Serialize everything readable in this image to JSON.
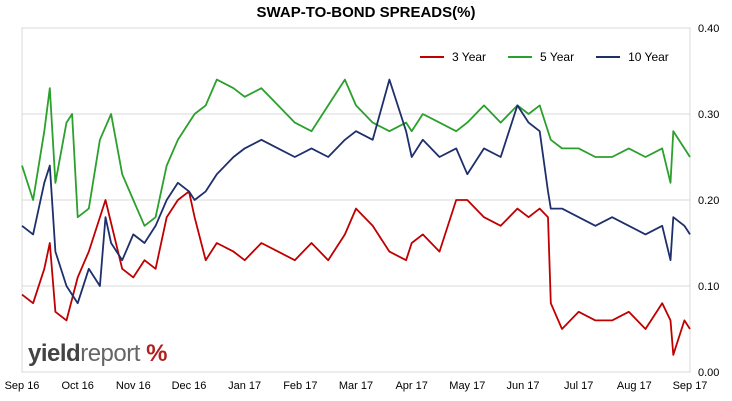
{
  "chart_data": {
    "type": "line",
    "title": "SWAP-TO-BOND SPREADS(%)",
    "xlabel": "",
    "ylabel": "",
    "ylim": [
      0,
      0.4
    ],
    "y_ticks": [
      "0.00",
      "0.10",
      "0.20",
      "0.30",
      "0.40"
    ],
    "y_axis_side": "right",
    "x_tick_labels": [
      "Sep 16",
      "Oct 16",
      "Nov 16",
      "Dec 16",
      "Jan 17",
      "Feb 17",
      "Mar 17",
      "Apr 17",
      "May 17",
      "Jun 17",
      "Jul 17",
      "Aug 17",
      "Sep 17"
    ],
    "grid": "horizontal",
    "legend_position": "top-right",
    "series": [
      {
        "name": "3 Year",
        "color": "#c00000",
        "x": [
          0,
          0.2,
          0.4,
          0.5,
          0.6,
          0.8,
          1.0,
          1.2,
          1.5,
          1.8,
          2.0,
          2.2,
          2.4,
          2.6,
          2.8,
          3.0,
          3.1,
          3.3,
          3.5,
          3.8,
          4.0,
          4.3,
          4.6,
          4.9,
          5.2,
          5.5,
          5.8,
          6.0,
          6.3,
          6.6,
          6.9,
          7.0,
          7.2,
          7.5,
          7.8,
          8.0,
          8.3,
          8.6,
          8.9,
          9.1,
          9.3,
          9.45,
          9.5,
          9.7,
          10.0,
          10.3,
          10.6,
          10.9,
          11.2,
          11.5,
          11.65,
          11.7,
          11.9,
          12.0
        ],
        "values": [
          0.09,
          0.08,
          0.12,
          0.15,
          0.07,
          0.06,
          0.11,
          0.14,
          0.2,
          0.12,
          0.11,
          0.13,
          0.12,
          0.18,
          0.2,
          0.21,
          0.18,
          0.13,
          0.15,
          0.14,
          0.13,
          0.15,
          0.14,
          0.13,
          0.15,
          0.13,
          0.16,
          0.19,
          0.17,
          0.14,
          0.13,
          0.15,
          0.16,
          0.14,
          0.2,
          0.2,
          0.18,
          0.17,
          0.19,
          0.18,
          0.19,
          0.18,
          0.08,
          0.05,
          0.07,
          0.06,
          0.06,
          0.07,
          0.05,
          0.08,
          0.06,
          0.02,
          0.06,
          0.05
        ]
      },
      {
        "name": "5 Year",
        "color": "#2ca02c",
        "x": [
          0,
          0.2,
          0.4,
          0.5,
          0.6,
          0.8,
          0.9,
          1.0,
          1.2,
          1.4,
          1.6,
          1.8,
          2.0,
          2.2,
          2.4,
          2.6,
          2.8,
          3.0,
          3.1,
          3.3,
          3.5,
          3.8,
          4.0,
          4.3,
          4.6,
          4.9,
          5.2,
          5.5,
          5.8,
          6.0,
          6.3,
          6.6,
          6.9,
          7.0,
          7.2,
          7.5,
          7.8,
          8.0,
          8.3,
          8.6,
          8.9,
          9.1,
          9.3,
          9.45,
          9.5,
          9.7,
          10.0,
          10.3,
          10.6,
          10.9,
          11.2,
          11.5,
          11.65,
          11.7,
          11.9,
          12.0
        ],
        "values": [
          0.24,
          0.2,
          0.28,
          0.33,
          0.22,
          0.29,
          0.3,
          0.18,
          0.19,
          0.27,
          0.3,
          0.23,
          0.2,
          0.17,
          0.18,
          0.24,
          0.27,
          0.29,
          0.3,
          0.31,
          0.34,
          0.33,
          0.32,
          0.33,
          0.31,
          0.29,
          0.28,
          0.31,
          0.34,
          0.31,
          0.29,
          0.28,
          0.29,
          0.28,
          0.3,
          0.29,
          0.28,
          0.29,
          0.31,
          0.29,
          0.31,
          0.3,
          0.31,
          0.28,
          0.27,
          0.26,
          0.26,
          0.25,
          0.25,
          0.26,
          0.25,
          0.26,
          0.22,
          0.28,
          0.26,
          0.25
        ]
      },
      {
        "name": "10 Year",
        "color": "#1f2f6b",
        "x": [
          0,
          0.2,
          0.4,
          0.5,
          0.6,
          0.8,
          1.0,
          1.2,
          1.4,
          1.5,
          1.6,
          1.8,
          2.0,
          2.2,
          2.4,
          2.6,
          2.8,
          3.0,
          3.1,
          3.3,
          3.5,
          3.8,
          4.0,
          4.3,
          4.6,
          4.9,
          5.2,
          5.5,
          5.8,
          6.0,
          6.3,
          6.6,
          6.9,
          7.0,
          7.2,
          7.5,
          7.8,
          8.0,
          8.3,
          8.6,
          8.9,
          9.1,
          9.3,
          9.45,
          9.5,
          9.7,
          10.0,
          10.3,
          10.6,
          10.9,
          11.2,
          11.5,
          11.65,
          11.7,
          11.9,
          12.0
        ],
        "values": [
          0.17,
          0.16,
          0.22,
          0.24,
          0.14,
          0.1,
          0.08,
          0.12,
          0.1,
          0.18,
          0.15,
          0.13,
          0.16,
          0.15,
          0.17,
          0.2,
          0.22,
          0.21,
          0.2,
          0.21,
          0.23,
          0.25,
          0.26,
          0.27,
          0.26,
          0.25,
          0.26,
          0.25,
          0.27,
          0.28,
          0.27,
          0.34,
          0.28,
          0.25,
          0.27,
          0.25,
          0.26,
          0.23,
          0.26,
          0.25,
          0.31,
          0.29,
          0.28,
          0.21,
          0.19,
          0.19,
          0.18,
          0.17,
          0.18,
          0.17,
          0.16,
          0.17,
          0.13,
          0.18,
          0.17,
          0.16
        ]
      }
    ]
  },
  "watermark": {
    "brand_a": "yield",
    "brand_b": "report",
    "brand_pct": "%"
  }
}
